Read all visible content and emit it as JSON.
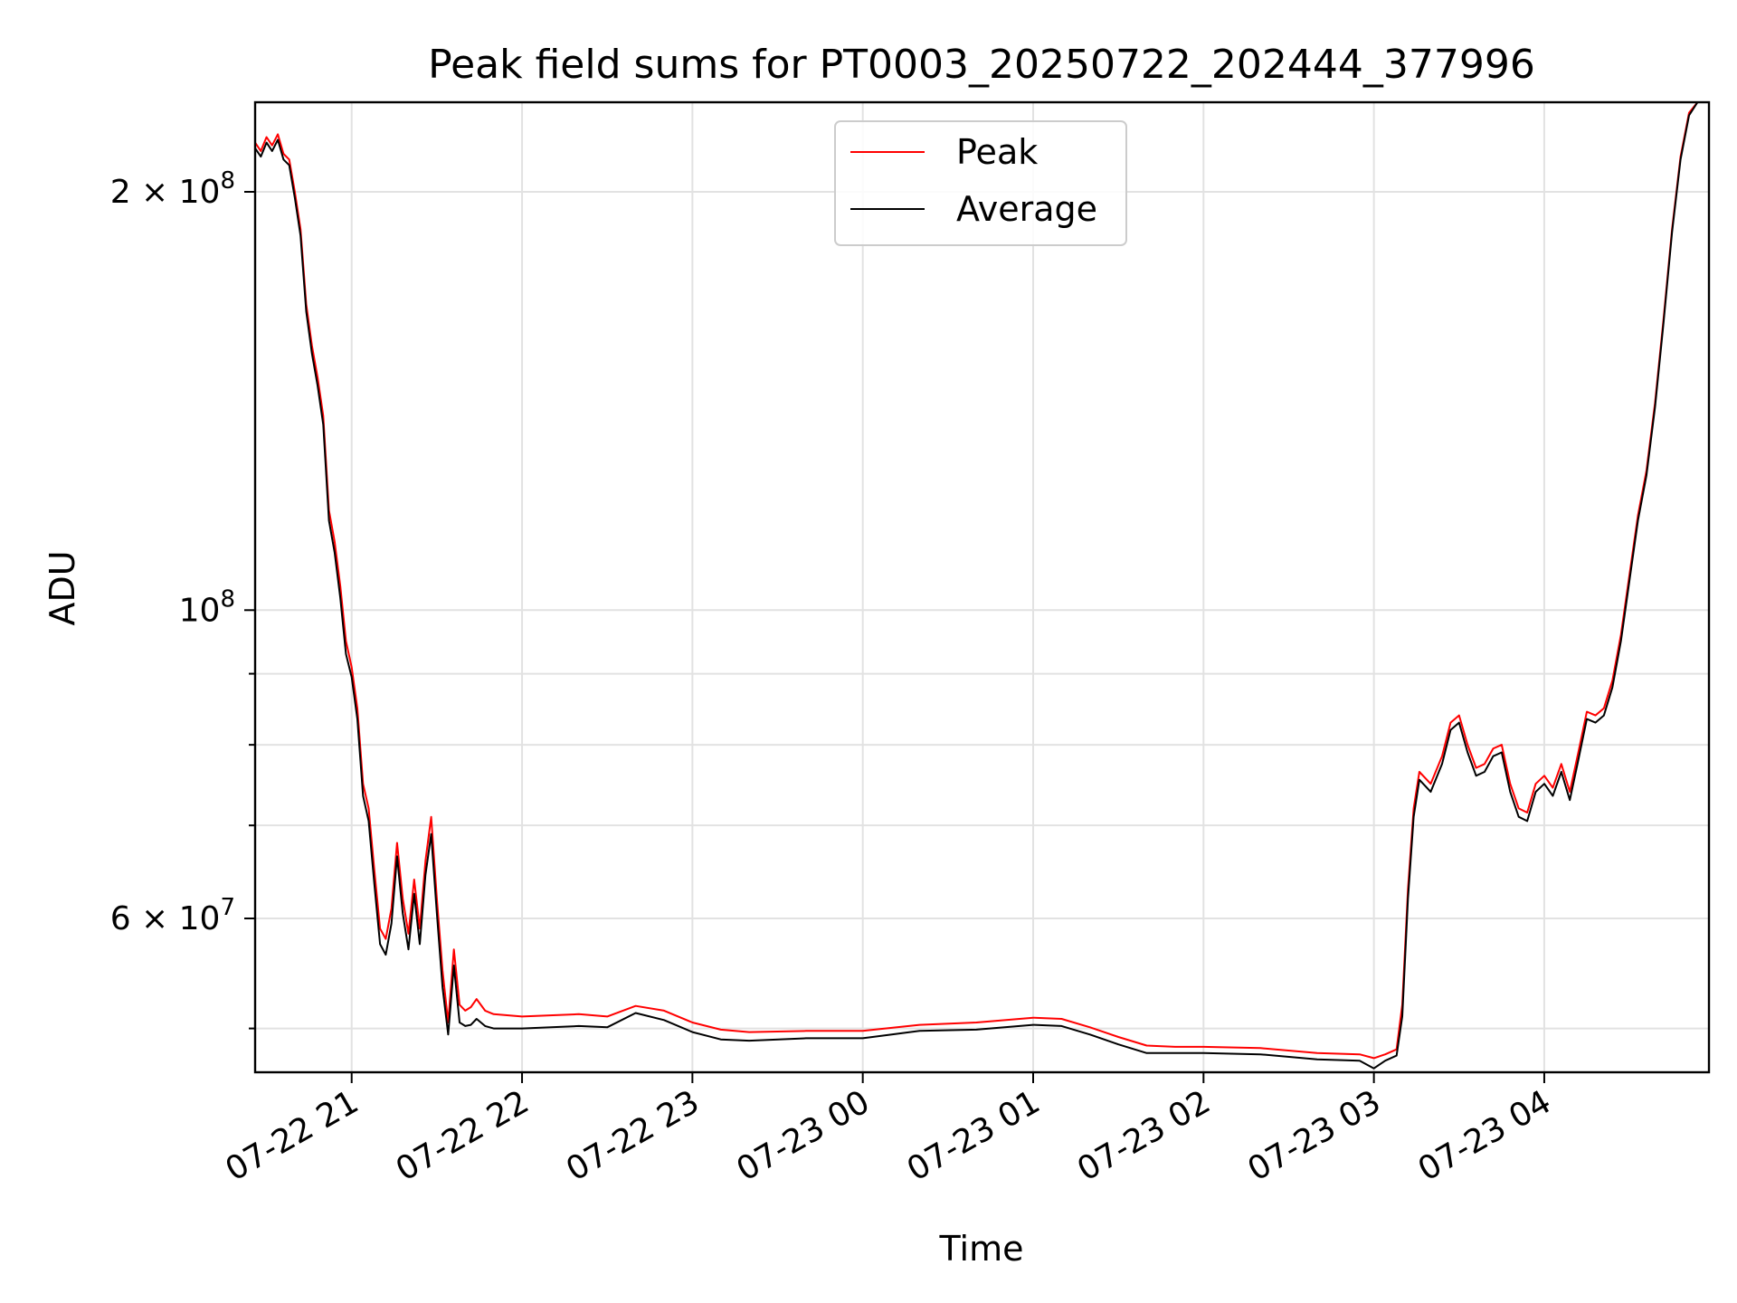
{
  "chart_data": {
    "type": "line",
    "title": "Peak field sums for PT0003_20250722_202444_377996",
    "xlabel": "Time",
    "ylabel": "ADU",
    "yscale": "log",
    "xlim": [
      "07-22 20:26",
      "07-23 04:58"
    ],
    "ylim": [
      46500000,
      232000000
    ],
    "grid": true,
    "legend": {
      "position": "upper center"
    },
    "x_ticks": [
      {
        "value": "07-22 21:00",
        "label": "07-22 21"
      },
      {
        "value": "07-22 22:00",
        "label": "07-22 22"
      },
      {
        "value": "07-22 23:00",
        "label": "07-22 23"
      },
      {
        "value": "07-23 00:00",
        "label": "07-23 00"
      },
      {
        "value": "07-23 01:00",
        "label": "07-23 01"
      },
      {
        "value": "07-23 02:00",
        "label": "07-23 02"
      },
      {
        "value": "07-23 03:00",
        "label": "07-23 03"
      },
      {
        "value": "07-23 04:00",
        "label": "07-23 04"
      }
    ],
    "y_ticks_major": [
      {
        "value": 100000000,
        "label_base": "10",
        "label_exp": "8",
        "label_coef": ""
      },
      {
        "value": 200000000,
        "label_base": "10",
        "label_exp": "8",
        "label_coef": "2 × "
      },
      {
        "value": 60000000,
        "label_base": "10",
        "label_exp": "7",
        "label_coef": "6 × "
      }
    ],
    "y_ticks_minor": [
      50000000,
      70000000,
      80000000,
      90000000
    ],
    "series": [
      {
        "name": "Peak",
        "color": "#ff0000",
        "points": [
          [
            "07-22 20:26",
            217000000
          ],
          [
            "07-22 20:28",
            214000000
          ],
          [
            "07-22 20:30",
            219000000
          ],
          [
            "07-22 20:32",
            216000000
          ],
          [
            "07-22 20:34",
            220000000
          ],
          [
            "07-22 20:36",
            213000000
          ],
          [
            "07-22 20:38",
            211000000
          ],
          [
            "07-22 20:40",
            200000000
          ],
          [
            "07-22 20:42",
            188000000
          ],
          [
            "07-22 20:44",
            166000000
          ],
          [
            "07-22 20:46",
            155000000
          ],
          [
            "07-22 20:48",
            147000000
          ],
          [
            "07-22 20:50",
            138000000
          ],
          [
            "07-22 20:52",
            118000000
          ],
          [
            "07-22 20:54",
            112000000
          ],
          [
            "07-22 20:56",
            104000000
          ],
          [
            "07-22 20:58",
            95000000
          ],
          [
            "07-22 21:00",
            91000000
          ],
          [
            "07-22 21:02",
            85000000
          ],
          [
            "07-22 21:04",
            75000000
          ],
          [
            "07-22 21:06",
            72000000
          ],
          [
            "07-22 21:08",
            65000000
          ],
          [
            "07-22 21:10",
            59000000
          ],
          [
            "07-22 21:12",
            58000000
          ],
          [
            "07-22 21:14",
            61000000
          ],
          [
            "07-22 21:16",
            68000000
          ],
          [
            "07-22 21:18",
            62000000
          ],
          [
            "07-22 21:20",
            58500000
          ],
          [
            "07-22 21:22",
            64000000
          ],
          [
            "07-22 21:24",
            59000000
          ],
          [
            "07-22 21:26",
            66000000
          ],
          [
            "07-22 21:28",
            71000000
          ],
          [
            "07-22 21:30",
            62000000
          ],
          [
            "07-22 21:32",
            55000000
          ],
          [
            "07-22 21:34",
            50500000
          ],
          [
            "07-22 21:36",
            57000000
          ],
          [
            "07-22 21:38",
            52000000
          ],
          [
            "07-22 21:40",
            51500000
          ],
          [
            "07-22 21:42",
            51800000
          ],
          [
            "07-22 21:44",
            52500000
          ],
          [
            "07-22 21:47",
            51500000
          ],
          [
            "07-22 21:50",
            51200000
          ],
          [
            "07-22 22:00",
            51000000
          ],
          [
            "07-22 22:20",
            51200000
          ],
          [
            "07-22 22:30",
            51000000
          ],
          [
            "07-22 22:40",
            51900000
          ],
          [
            "07-22 22:50",
            51500000
          ],
          [
            "07-22 23:00",
            50500000
          ],
          [
            "07-22 23:10",
            49900000
          ],
          [
            "07-22 23:20",
            49700000
          ],
          [
            "07-22 23:40",
            49800000
          ],
          [
            "07-23 00:00",
            49800000
          ],
          [
            "07-23 00:20",
            50300000
          ],
          [
            "07-23 00:40",
            50500000
          ],
          [
            "07-23 01:00",
            50900000
          ],
          [
            "07-23 01:10",
            50800000
          ],
          [
            "07-23 01:20",
            50100000
          ],
          [
            "07-23 01:30",
            49300000
          ],
          [
            "07-23 01:40",
            48600000
          ],
          [
            "07-23 01:50",
            48500000
          ],
          [
            "07-23 02:00",
            48500000
          ],
          [
            "07-23 02:20",
            48400000
          ],
          [
            "07-23 02:40",
            48000000
          ],
          [
            "07-23 02:55",
            47900000
          ],
          [
            "07-23 03:00",
            47600000
          ],
          [
            "07-23 03:04",
            47900000
          ],
          [
            "07-23 03:08",
            48300000
          ],
          [
            "07-23 03:10",
            52000000
          ],
          [
            "07-23 03:12",
            63000000
          ],
          [
            "07-23 03:14",
            72000000
          ],
          [
            "07-23 03:16",
            76500000
          ],
          [
            "07-23 03:20",
            75000000
          ],
          [
            "07-23 03:24",
            78500000
          ],
          [
            "07-23 03:27",
            83000000
          ],
          [
            "07-23 03:30",
            84000000
          ],
          [
            "07-23 03:33",
            80000000
          ],
          [
            "07-23 03:36",
            77000000
          ],
          [
            "07-23 03:39",
            77500000
          ],
          [
            "07-23 03:42",
            79500000
          ],
          [
            "07-23 03:45",
            80000000
          ],
          [
            "07-23 03:48",
            75000000
          ],
          [
            "07-23 03:51",
            72000000
          ],
          [
            "07-23 03:54",
            71500000
          ],
          [
            "07-23 03:57",
            75000000
          ],
          [
            "07-23 04:00",
            76000000
          ],
          [
            "07-23 04:03",
            74500000
          ],
          [
            "07-23 04:06",
            77500000
          ],
          [
            "07-23 04:09",
            74000000
          ],
          [
            "07-23 04:12",
            79000000
          ],
          [
            "07-23 04:15",
            84500000
          ],
          [
            "07-23 04:18",
            84000000
          ],
          [
            "07-23 04:21",
            85000000
          ],
          [
            "07-23 04:24",
            89000000
          ],
          [
            "07-23 04:27",
            96000000
          ],
          [
            "07-23 04:30",
            106000000
          ],
          [
            "07-23 04:33",
            117000000
          ],
          [
            "07-23 04:36",
            126000000
          ],
          [
            "07-23 04:39",
            141000000
          ],
          [
            "07-23 04:42",
            162000000
          ],
          [
            "07-23 04:45",
            188000000
          ],
          [
            "07-23 04:48",
            212000000
          ],
          [
            "07-23 04:51",
            228000000
          ],
          [
            "07-23 04:54",
            232000000
          ],
          [
            "07-23 04:58",
            232000000
          ]
        ]
      },
      {
        "name": "Average",
        "color": "#000000",
        "points": [
          [
            "07-22 20:26",
            215000000
          ],
          [
            "07-22 20:28",
            212000000
          ],
          [
            "07-22 20:30",
            217000000
          ],
          [
            "07-22 20:32",
            214000000
          ],
          [
            "07-22 20:34",
            218000000
          ],
          [
            "07-22 20:36",
            211000000
          ],
          [
            "07-22 20:38",
            209000000
          ],
          [
            "07-22 20:40",
            198000000
          ],
          [
            "07-22 20:42",
            186000000
          ],
          [
            "07-22 20:44",
            164000000
          ],
          [
            "07-22 20:46",
            153000000
          ],
          [
            "07-22 20:48",
            145000000
          ],
          [
            "07-22 20:50",
            136000000
          ],
          [
            "07-22 20:52",
            116000000
          ],
          [
            "07-22 20:54",
            110000000
          ],
          [
            "07-22 20:56",
            102000000
          ],
          [
            "07-22 20:58",
            93000000
          ],
          [
            "07-22 21:00",
            89500000
          ],
          [
            "07-22 21:02",
            83500000
          ],
          [
            "07-22 21:04",
            73500000
          ],
          [
            "07-22 21:06",
            70500000
          ],
          [
            "07-22 21:08",
            63500000
          ],
          [
            "07-22 21:10",
            57500000
          ],
          [
            "07-22 21:12",
            56500000
          ],
          [
            "07-22 21:14",
            59500000
          ],
          [
            "07-22 21:16",
            66500000
          ],
          [
            "07-22 21:18",
            60500000
          ],
          [
            "07-22 21:20",
            57000000
          ],
          [
            "07-22 21:22",
            62500000
          ],
          [
            "07-22 21:24",
            57500000
          ],
          [
            "07-22 21:26",
            64500000
          ],
          [
            "07-22 21:28",
            69000000
          ],
          [
            "07-22 21:30",
            60500000
          ],
          [
            "07-22 21:32",
            53500000
          ],
          [
            "07-22 21:34",
            49500000
          ],
          [
            "07-22 21:36",
            55500000
          ],
          [
            "07-22 21:38",
            50500000
          ],
          [
            "07-22 21:40",
            50200000
          ],
          [
            "07-22 21:42",
            50300000
          ],
          [
            "07-22 21:44",
            50800000
          ],
          [
            "07-22 21:47",
            50200000
          ],
          [
            "07-22 21:50",
            50000000
          ],
          [
            "07-22 22:00",
            50000000
          ],
          [
            "07-22 22:20",
            50200000
          ],
          [
            "07-22 22:30",
            50100000
          ],
          [
            "07-22 22:40",
            51300000
          ],
          [
            "07-22 22:50",
            50700000
          ],
          [
            "07-22 23:00",
            49700000
          ],
          [
            "07-22 23:10",
            49100000
          ],
          [
            "07-22 23:20",
            49000000
          ],
          [
            "07-22 23:40",
            49200000
          ],
          [
            "07-23 00:00",
            49200000
          ],
          [
            "07-23 00:20",
            49800000
          ],
          [
            "07-23 00:40",
            49900000
          ],
          [
            "07-23 01:00",
            50300000
          ],
          [
            "07-23 01:10",
            50200000
          ],
          [
            "07-23 01:20",
            49500000
          ],
          [
            "07-23 01:30",
            48700000
          ],
          [
            "07-23 01:40",
            48000000
          ],
          [
            "07-23 01:50",
            48000000
          ],
          [
            "07-23 02:00",
            48000000
          ],
          [
            "07-23 02:20",
            47900000
          ],
          [
            "07-23 02:40",
            47500000
          ],
          [
            "07-23 02:55",
            47400000
          ],
          [
            "07-23 03:00",
            46800000
          ],
          [
            "07-23 03:04",
            47400000
          ],
          [
            "07-23 03:08",
            47800000
          ],
          [
            "07-23 03:10",
            51000000
          ],
          [
            "07-23 03:12",
            62000000
          ],
          [
            "07-23 03:14",
            71000000
          ],
          [
            "07-23 03:16",
            75500000
          ],
          [
            "07-23 03:20",
            74000000
          ],
          [
            "07-23 03:24",
            77500000
          ],
          [
            "07-23 03:27",
            82000000
          ],
          [
            "07-23 03:30",
            83000000
          ],
          [
            "07-23 03:33",
            79000000
          ],
          [
            "07-23 03:36",
            76000000
          ],
          [
            "07-23 03:39",
            76500000
          ],
          [
            "07-23 03:42",
            78500000
          ],
          [
            "07-23 03:45",
            79000000
          ],
          [
            "07-23 03:48",
            74000000
          ],
          [
            "07-23 03:51",
            71000000
          ],
          [
            "07-23 03:54",
            70500000
          ],
          [
            "07-23 03:57",
            74000000
          ],
          [
            "07-23 04:00",
            75000000
          ],
          [
            "07-23 04:03",
            73500000
          ],
          [
            "07-23 04:06",
            76500000
          ],
          [
            "07-23 04:09",
            73000000
          ],
          [
            "07-23 04:12",
            78000000
          ],
          [
            "07-23 04:15",
            83500000
          ],
          [
            "07-23 04:18",
            83000000
          ],
          [
            "07-23 04:21",
            84000000
          ],
          [
            "07-23 04:24",
            88000000
          ],
          [
            "07-23 04:27",
            95000000
          ],
          [
            "07-23 04:30",
            105000000
          ],
          [
            "07-23 04:33",
            116000000
          ],
          [
            "07-23 04:36",
            125000000
          ],
          [
            "07-23 04:39",
            140000000
          ],
          [
            "07-23 04:42",
            161000000
          ],
          [
            "07-23 04:45",
            187000000
          ],
          [
            "07-23 04:48",
            211000000
          ],
          [
            "07-23 04:51",
            227000000
          ],
          [
            "07-23 04:54",
            232000000
          ],
          [
            "07-23 04:58",
            232000000
          ]
        ]
      }
    ]
  }
}
